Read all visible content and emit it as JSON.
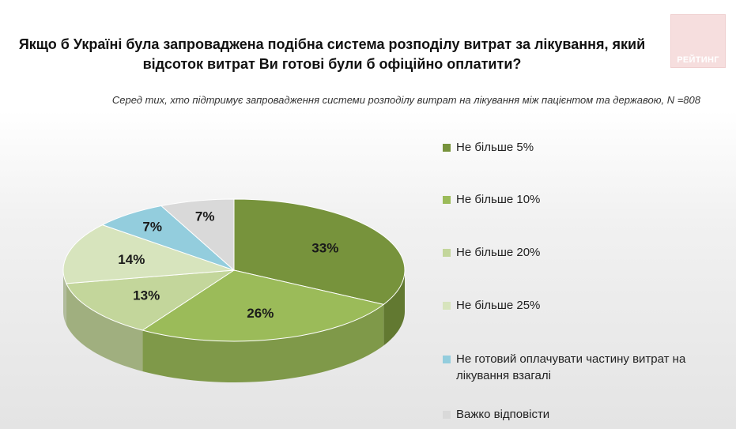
{
  "header": {
    "title": "Якщо б Україні була запроваджена подібна система розподілу витрат за лікування, який відсоток витрат Ви готові були б офіційно оплатити?",
    "subtitle": "Серед тих, хто підтримує запровадження системи розподілу витрат на лікування між пацієнтом та державою, N =808",
    "logo_text": "РЕЙТИНГ"
  },
  "chart_data": {
    "type": "pie",
    "title": "Якщо б Україні була запроваджена подібна система розподілу витрат за лікування, який відсоток витрат Ви готові були б офіційно оплатити?",
    "subtitle": "Серед тих, хто підтримує запровадження системи розподілу витрат на лікування між пацієнтом та державою, N =808",
    "unit": "%",
    "legend_position": "right",
    "slices": [
      {
        "label": "Не більше 5%",
        "value": 33,
        "display": "33%",
        "color": "#77933c"
      },
      {
        "label": "Не більше 10%",
        "value": 26,
        "display": "26%",
        "color": "#9bbb59"
      },
      {
        "label": "Не більше 20%",
        "value": 13,
        "display": "13%",
        "color": "#c3d69b"
      },
      {
        "label": "Не більше 25%",
        "value": 14,
        "display": "14%",
        "color": "#d7e4bd"
      },
      {
        "label": "Не готовий оплачувати частину витрат на лікування взагалі",
        "value": 7,
        "display": "7%",
        "color": "#93cddd"
      },
      {
        "label": "Важко відповісти",
        "value": 7,
        "display": "7%",
        "color": "#d9d9d9"
      }
    ]
  }
}
